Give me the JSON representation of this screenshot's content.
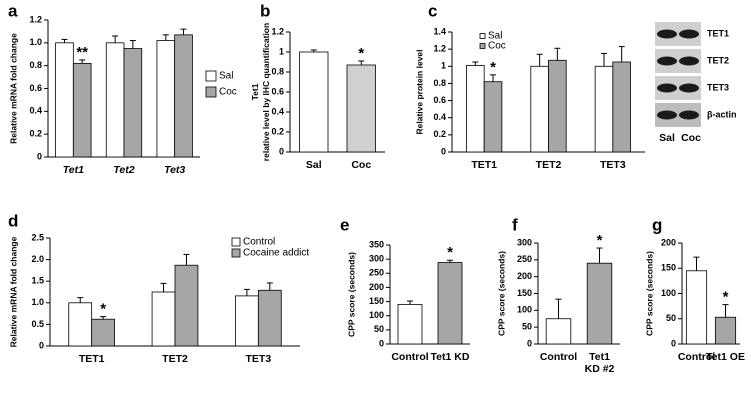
{
  "chart_data": [
    {
      "type": "bar",
      "panel": "a",
      "ylabel": "Relative mRNA fold change",
      "categories": [
        "Tet1",
        "Tet2",
        "Tet3"
      ],
      "series": [
        {
          "name": "Sal",
          "color": "#ffffff",
          "values": [
            1.0,
            1.0,
            1.02
          ],
          "errors": [
            0.03,
            0.06,
            0.05
          ]
        },
        {
          "name": "Coc",
          "color": "#a6a6a6",
          "values": [
            0.82,
            0.95,
            1.07
          ],
          "errors": [
            0.03,
            0.07,
            0.05
          ]
        }
      ],
      "ylim": [
        0,
        1.2
      ],
      "yticks": [
        0,
        0.2,
        0.4,
        0.6,
        0.8,
        {
          "value": 1,
          "label": "1.0"
        },
        1.2
      ],
      "annotations": [
        {
          "text": "**",
          "category": 0,
          "series": 1
        }
      ]
    },
    {
      "type": "bar",
      "panel": "b",
      "ylabel": "Tet1 relative level by IHC quantification",
      "categories": [
        "Sal",
        "Coc"
      ],
      "values": [
        1.0,
        0.87
      ],
      "errors": [
        0.02,
        0.04
      ],
      "colors": [
        "#ffffff",
        "#d0d0d0"
      ],
      "ylim": [
        0,
        1.2
      ],
      "yticks": [
        0,
        0.2,
        0.4,
        0.6,
        0.8,
        1,
        1.2
      ],
      "annotations": [
        {
          "text": "*",
          "category": 1
        }
      ]
    },
    {
      "type": "bar",
      "panel": "c",
      "ylabel": "Relative protein level",
      "categories": [
        "TET1",
        "TET2",
        "TET3"
      ],
      "series": [
        {
          "name": "Sal",
          "color": "#ffffff",
          "values": [
            1.01,
            1.0,
            1.0
          ],
          "errors": [
            0.04,
            0.14,
            0.15
          ]
        },
        {
          "name": "Coc",
          "color": "#a6a6a6",
          "values": [
            0.82,
            1.07,
            1.05
          ],
          "errors": [
            0.08,
            0.14,
            0.18
          ]
        }
      ],
      "ylim": [
        0,
        1.4
      ],
      "yticks": [
        0,
        0.2,
        0.4,
        0.6,
        0.8,
        1,
        1.2,
        1.4
      ],
      "annotations": [
        {
          "text": "*",
          "category": 0,
          "series": 1
        }
      ],
      "blot": {
        "rows": [
          "TET1",
          "TET2",
          "TET3",
          "β-actin"
        ],
        "lanes": [
          "Sal",
          "Coc"
        ]
      }
    },
    {
      "type": "bar",
      "panel": "d",
      "ylabel": "Relative mRNA fold change",
      "categories": [
        "TET1",
        "TET2",
        "TET3"
      ],
      "series": [
        {
          "name": "Control",
          "color": "#ffffff",
          "values": [
            1.0,
            1.25,
            1.16
          ],
          "errors": [
            0.12,
            0.2,
            0.15
          ]
        },
        {
          "name": "Cocaine addict",
          "color": "#a6a6a6",
          "values": [
            0.62,
            1.87,
            1.29
          ],
          "errors": [
            0.06,
            0.25,
            0.17
          ]
        }
      ],
      "ylim": [
        0,
        2.5
      ],
      "yticks": [
        0,
        0.5,
        {
          "value": 1,
          "label": "1.0"
        },
        1.5,
        {
          "value": 2,
          "label": "2.0"
        },
        2.5
      ],
      "annotations": [
        {
          "text": "*",
          "category": 0,
          "series": 1
        }
      ]
    },
    {
      "type": "bar",
      "panel": "e",
      "ylabel": "CPP score (seconds)",
      "categories": [
        "Control",
        "Tet1 KD"
      ],
      "values": [
        140,
        288
      ],
      "errors": [
        12,
        8
      ],
      "colors": [
        "#ffffff",
        "#a6a6a6"
      ],
      "ylim": [
        0,
        350
      ],
      "yticks": [
        0,
        50,
        100,
        150,
        200,
        250,
        300,
        350
      ],
      "annotations": [
        {
          "text": "*",
          "category": 1
        }
      ]
    },
    {
      "type": "bar",
      "panel": "f",
      "ylabel": "CPP score (seconds)",
      "categories": [
        "Control",
        "Tet1 KD #2"
      ],
      "values": [
        75,
        240
      ],
      "errors": [
        58,
        45
      ],
      "colors": [
        "#ffffff",
        "#a6a6a6"
      ],
      "ylim": [
        0,
        300
      ],
      "yticks": [
        0,
        50,
        100,
        150,
        200,
        250,
        300
      ],
      "annotations": [
        {
          "text": "*",
          "category": 1
        }
      ]
    },
    {
      "type": "bar",
      "panel": "g",
      "ylabel": "CPP score (seconds)",
      "categories": [
        "Control",
        "Tet1 OE"
      ],
      "values": [
        145,
        53
      ],
      "errors": [
        27,
        25
      ],
      "colors": [
        "#ffffff",
        "#a6a6a6"
      ],
      "ylim": [
        0,
        200
      ],
      "yticks": [
        0,
        50,
        100,
        150,
        200
      ],
      "annotations": [
        {
          "text": "*",
          "category": 1
        }
      ]
    }
  ]
}
